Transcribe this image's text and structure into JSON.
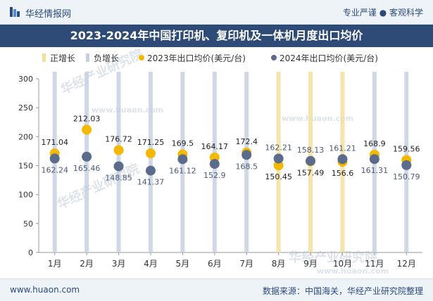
{
  "header": {
    "brand": "华经情报网",
    "slogan": "专业严谨 ● 客观科学"
  },
  "title": "2023-2024年中国打印机、复印机及一体机月度出口均价",
  "footer": {
    "website": "www.huaon.com",
    "source": "数据来源：中国海关，华经产业研究院整理"
  },
  "watermark": {
    "cn": "华经产业研究院",
    "url": "www.huaon.com"
  },
  "colors": {
    "header_band": "#2e4a76",
    "brand_text": "#2b4a7a",
    "positive_growth": "#f2df98",
    "negative_growth": "#c6cedf",
    "series_2023": "#f5b800",
    "series_2024": "#5a6b8c"
  },
  "icons": [
    "logo-icon"
  ],
  "chart_data": {
    "type": "scatter",
    "categories": [
      "1月",
      "2月",
      "3月",
      "4月",
      "5月",
      "6月",
      "7月",
      "8月",
      "9月",
      "10月",
      "11月",
      "12月"
    ],
    "legend": [
      "正增长",
      "负增长",
      "2023年出口均价(美元/台)",
      "2024年出口均价(美元/台)"
    ],
    "legend_position": "top",
    "series": [
      {
        "name": "2023年出口均价(美元/台)",
        "values": [
          171.04,
          212.03,
          176.72,
          171.25,
          169.5,
          164.17,
          172.4,
          150.45,
          157.49,
          156.6,
          168.9,
          159.56
        ]
      },
      {
        "name": "2024年出口均价(美元/台)",
        "values": [
          162.24,
          165.46,
          148.85,
          141.37,
          161.12,
          152.9,
          168.5,
          162.21,
          158.13,
          161.21,
          161.31,
          150.79
        ]
      }
    ],
    "ylim": [
      0,
      300
    ],
    "yticks": [
      0,
      50,
      100,
      150,
      200,
      250,
      300
    ],
    "grid": false
  }
}
